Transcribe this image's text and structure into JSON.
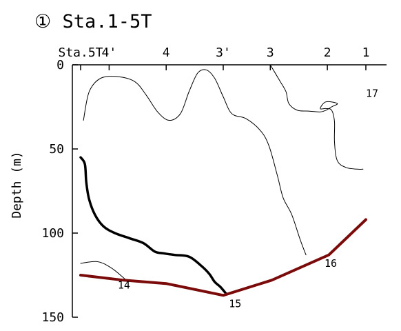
{
  "chart_data": {
    "type": "line",
    "title": "① Sta.1-5T",
    "ylabel": "Depth (m)",
    "ylim": [
      0,
      150
    ],
    "y_inverted": true,
    "y_ticks": [
      0,
      50,
      100,
      150
    ],
    "x_ticks": [
      {
        "label": "Sta.5T",
        "pos": 0.0
      },
      {
        "label": "4'",
        "pos": 0.1
      },
      {
        "label": "4",
        "pos": 0.3
      },
      {
        "label": "3'",
        "pos": 0.5
      },
      {
        "label": "3",
        "pos": 0.665
      },
      {
        "label": "2",
        "pos": 0.865
      },
      {
        "label": "1",
        "pos": 1.0
      }
    ],
    "grid": false,
    "colors": {
      "axis": "#000000",
      "thin": "#000000",
      "bold": "#000000",
      "bottom": "#7b0a0a"
    },
    "series": [
      {
        "label": "14",
        "weight": "thin",
        "label_at": [
          0.13,
          131
        ],
        "points": [
          [
            0.0,
            118
          ],
          [
            0.06,
            117
          ],
          [
            0.11,
            121
          ],
          [
            0.16,
            128
          ]
        ]
      },
      {
        "label": "",
        "weight": "thin",
        "points": [
          [
            0.01,
            33
          ],
          [
            0.03,
            16
          ],
          [
            0.07,
            8
          ],
          [
            0.13,
            7
          ],
          [
            0.19,
            10
          ],
          [
            0.23,
            18
          ],
          [
            0.27,
            28
          ],
          [
            0.31,
            33
          ],
          [
            0.35,
            29
          ],
          [
            0.38,
            16
          ],
          [
            0.41,
            5
          ],
          [
            0.44,
            3
          ],
          [
            0.47,
            8
          ],
          [
            0.5,
            19
          ],
          [
            0.53,
            29
          ],
          [
            0.58,
            32
          ],
          [
            0.63,
            39
          ],
          [
            0.66,
            48
          ],
          [
            0.69,
            66
          ],
          [
            0.71,
            79
          ],
          [
            0.74,
            89
          ],
          [
            0.77,
            104
          ],
          [
            0.79,
            113
          ]
        ]
      },
      {
        "label": "17",
        "weight": "thin",
        "label_at": [
          1.0,
          17
        ],
        "points": [
          [
            0.665,
            0
          ],
          [
            0.7,
            10
          ],
          [
            0.72,
            16
          ],
          [
            0.73,
            23
          ],
          [
            0.76,
            27
          ],
          [
            0.8,
            27.5
          ],
          [
            0.84,
            28
          ],
          [
            0.86,
            27
          ],
          [
            0.88,
            25
          ],
          [
            0.9,
            23
          ],
          [
            0.86,
            22
          ],
          [
            0.84,
            26
          ],
          [
            0.86,
            26
          ],
          [
            0.88,
            27
          ],
          [
            0.89,
            34
          ],
          [
            0.89,
            46
          ],
          [
            0.9,
            57
          ],
          [
            0.93,
            61
          ],
          [
            0.97,
            62
          ],
          [
            0.99,
            62
          ]
        ]
      },
      {
        "label": "",
        "weight": "bold",
        "points": [
          [
            0.0,
            55
          ],
          [
            0.015,
            59
          ],
          [
            0.02,
            70
          ],
          [
            0.03,
            80
          ],
          [
            0.05,
            89
          ],
          [
            0.08,
            96
          ],
          [
            0.12,
            100
          ],
          [
            0.17,
            103
          ],
          [
            0.22,
            106
          ],
          [
            0.26,
            111
          ],
          [
            0.29,
            112
          ],
          [
            0.33,
            113
          ],
          [
            0.38,
            114
          ],
          [
            0.42,
            119
          ],
          [
            0.45,
            124
          ],
          [
            0.47,
            129
          ],
          [
            0.49,
            132
          ],
          [
            0.51,
            136
          ]
        ]
      },
      {
        "label": "15",
        "weight": "bottom",
        "label_at": [
          0.52,
          142
        ],
        "points": [
          [
            0.0,
            125
          ],
          [
            0.15,
            128
          ],
          [
            0.3,
            130
          ],
          [
            0.5,
            137
          ],
          [
            0.67,
            128
          ],
          [
            0.87,
            113
          ],
          [
            1.0,
            92
          ]
        ]
      },
      {
        "label": "16",
        "weight": "thin",
        "label_at": [
          0.855,
          118
        ],
        "points": []
      }
    ]
  }
}
